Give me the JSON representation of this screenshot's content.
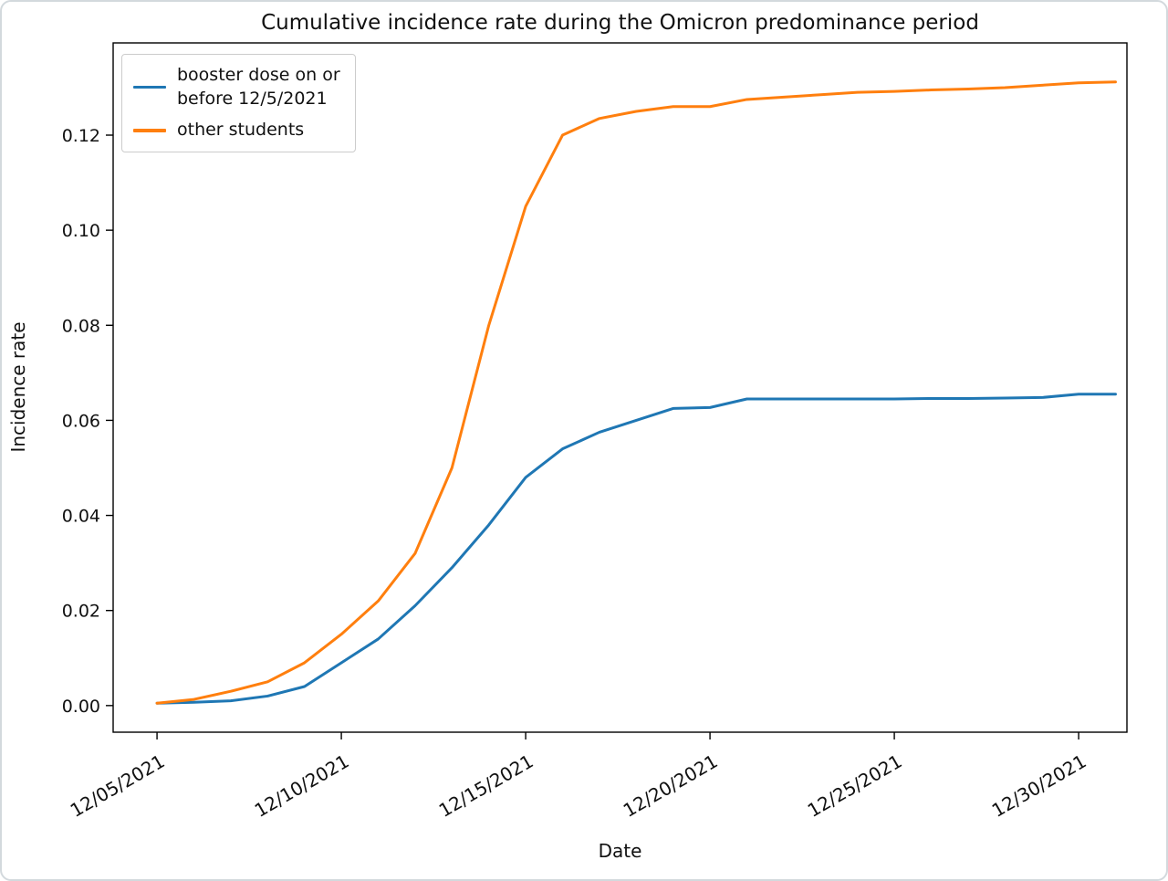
{
  "figure": {
    "border_color": "#d3d9dd",
    "background": "#ffffff"
  },
  "chart_data": {
    "type": "line",
    "title": "Cumulative incidence rate during the Omicron predominance period",
    "xlabel": "Date",
    "ylabel": "Incidence rate",
    "grid": false,
    "legend_position": "upper left",
    "x_dates": [
      "12/05/2021",
      "12/06/2021",
      "12/07/2021",
      "12/08/2021",
      "12/09/2021",
      "12/10/2021",
      "12/11/2021",
      "12/12/2021",
      "12/13/2021",
      "12/14/2021",
      "12/15/2021",
      "12/16/2021",
      "12/17/2021",
      "12/18/2021",
      "12/19/2021",
      "12/20/2021",
      "12/21/2021",
      "12/22/2021",
      "12/23/2021",
      "12/24/2021",
      "12/25/2021",
      "12/26/2021",
      "12/27/2021",
      "12/28/2021",
      "12/29/2021",
      "12/30/2021",
      "12/31/2021"
    ],
    "series": [
      {
        "name": "booster dose on or\nbefore 12/5/2021",
        "color": "#1f77b4",
        "values": [
          0.0005,
          0.0007,
          0.001,
          0.002,
          0.004,
          0.009,
          0.014,
          0.021,
          0.029,
          0.038,
          0.048,
          0.054,
          0.0575,
          0.06,
          0.0625,
          0.0627,
          0.0645,
          0.0645,
          0.0645,
          0.0645,
          0.0645,
          0.0646,
          0.0646,
          0.0647,
          0.0648,
          0.0655,
          0.0655
        ]
      },
      {
        "name": "other students",
        "color": "#ff7f0e",
        "values": [
          0.0005,
          0.0013,
          0.003,
          0.005,
          0.009,
          0.015,
          0.022,
          0.032,
          0.05,
          0.08,
          0.105,
          0.12,
          0.1235,
          0.125,
          0.126,
          0.126,
          0.1275,
          0.128,
          0.1285,
          0.129,
          0.1292,
          0.1295,
          0.1297,
          0.13,
          0.1305,
          0.131,
          0.1312
        ]
      }
    ],
    "xticks": {
      "indices": [
        0,
        5,
        10,
        15,
        20,
        25
      ],
      "labels": [
        "12/05/2021",
        "12/10/2021",
        "12/15/2021",
        "12/20/2021",
        "12/25/2021",
        "12/30/2021"
      ]
    },
    "yticks": [
      0.0,
      0.02,
      0.04,
      0.06,
      0.08,
      0.1,
      0.12
    ],
    "ylim": [
      -0.0056,
      0.1394
    ],
    "xlim": [
      -1.19,
      26.31
    ],
    "axes_color": "#000000",
    "tick_label_size": 19
  }
}
